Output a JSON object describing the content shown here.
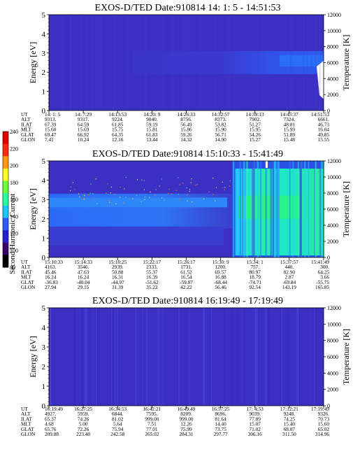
{
  "colorbar": {
    "label": "Second Harmonic Current",
    "ticks": [
      "80",
      "100",
      "120",
      "140",
      "160",
      "180",
      "200",
      "220",
      "240"
    ],
    "colors": [
      "#000000",
      "#3a006e",
      "#2a1fd0",
      "#2f5bff",
      "#19c8ff",
      "#27ffa0",
      "#6bff3a",
      "#ffff20",
      "#ff9a10",
      "#ff2a10",
      "#e00000"
    ]
  },
  "chart_data": [
    {
      "type": "heatmap",
      "title": "EXOS-D/TED   Date:910814  14: 1: 5 - 14:51:53",
      "ylabel": "Energy [eV]",
      "y2label": "Temperature [K]",
      "ylim": [
        0,
        5
      ],
      "y2lim": [
        0,
        12000
      ],
      "yticks": [
        "0",
        "1",
        "2",
        "3",
        "4",
        "5"
      ],
      "y2ticks": [
        "0",
        "2000",
        "4000",
        "6000",
        "8000",
        "10000",
        "12000"
      ],
      "row_labels": [
        "UT",
        "ALT",
        "ILAT",
        "MLT",
        "GLAT",
        "GLON"
      ],
      "columns": [
        [
          "14: 1: 5",
          "9313.",
          "67.39",
          "15.60",
          "69.47",
          "7.41"
        ],
        [
          "14: 7:29",
          "9317.",
          "64.59",
          "15.69",
          "66.92",
          "10.24"
        ],
        [
          "14:13:53",
          "9224.",
          "61.85",
          "15.75",
          "64.35",
          "12.16"
        ],
        [
          "14:20: 9",
          "9040.",
          "59.19",
          "15.81",
          "61.83",
          "13.44"
        ],
        [
          "14:26:33",
          "8756.",
          "56.49",
          "15.86",
          "59.26",
          "14.32"
        ],
        [
          "14:32:57",
          "8373.",
          "53.82",
          "15.90",
          "56.71",
          "14.90"
        ],
        [
          "14:39:13",
          "7902.",
          "51.27",
          "15.95",
          "54.26",
          "15.27"
        ],
        [
          "14:45:37",
          "7324.",
          "48.81",
          "15.99",
          "51.89",
          "15.48"
        ],
        [
          "14:51:53",
          "6661.",
          "46.73",
          "16.04",
          "49.85",
          "15.55"
        ]
      ],
      "bands": [
        {
          "name": "background",
          "color": "#3b2fc4"
        },
        {
          "name": "ion band ~2-3 eV",
          "color": "#2c58f0"
        }
      ]
    },
    {
      "type": "heatmap",
      "title": "EXOS-D/TED   Date:910814  15:10:33 - 15:41:49",
      "ylabel": "Energy [eV]",
      "y2label": "Temperature [K]",
      "ylim": [
        0,
        5
      ],
      "y2lim": [
        0,
        12000
      ],
      "yticks": [
        "0",
        "1",
        "2",
        "3",
        "4",
        "5"
      ],
      "y2ticks": [
        "0",
        "2000",
        "4000",
        "6000",
        "8000",
        "10000",
        "12000"
      ],
      "row_labels": [
        "UT",
        "ALT",
        "ILAT",
        "MLT",
        "GLAT",
        "GLON"
      ],
      "columns": [
        [
          "15:10:33",
          "4163.",
          "45.46",
          "16.24",
          "-36.83",
          "27.94"
        ],
        [
          "15:14:33",
          "3546.",
          "47.63",
          "16.24",
          "-40.04",
          "29.15"
        ],
        [
          "15:18:25",
          "2939.",
          "50.88",
          "16.31",
          "-44.97",
          "31.39"
        ],
        [
          "15:22:17",
          "2333.",
          "55.37",
          "16.39",
          "-51.62",
          "35.22"
        ],
        [
          "15:26:17",
          "1731.",
          "61.52",
          "16.54",
          "-59.87",
          "42.22"
        ],
        [
          "15:30: 9",
          "1200.",
          "69.57",
          "16.88",
          "-68.44",
          "56.46"
        ],
        [
          "15:34: 1",
          "757.",
          "80.97",
          "18.79",
          "-74.71",
          "92.54"
        ],
        [
          "15:37:57",
          "440.",
          "82.90",
          "2.87",
          "-69.84",
          "143.19"
        ],
        [
          "15:41:49",
          "300.",
          "64.25",
          "3.66",
          "-55.75",
          "165.85"
        ]
      ]
    },
    {
      "type": "heatmap",
      "title": "EXOS-D/TED   Date:910814  16:19:49 - 17:19:49",
      "ylabel": "Energy [eV]",
      "y2label": "Temperature [K]",
      "ylim": [
        0,
        5
      ],
      "y2lim": [
        0,
        12000
      ],
      "yticks": [
        "0",
        "1",
        "2",
        "3",
        "4",
        "5"
      ],
      "y2ticks": [
        "0",
        "2000",
        "4000",
        "6000",
        "8000",
        "10000",
        "12000"
      ],
      "row_labels": [
        "UT",
        "ALT",
        "ILAT",
        "MLT",
        "GLAT",
        "GLON"
      ],
      "columns": [
        [
          "16:19:49",
          "4927.",
          "65.37",
          "4.68",
          "65.76",
          "209.88"
        ],
        [
          "16:27:25",
          "5959.",
          "74.26",
          "5.00",
          "72.26",
          "223.40"
        ],
        [
          "16:34:53",
          "6844.",
          "81.02",
          "5.64",
          "75.94",
          "242.58"
        ],
        [
          "16:42:21",
          "7595.",
          "999.00",
          "7.51",
          "77.01",
          "265.02"
        ],
        [
          "16:49:49",
          "8209.",
          "999.00",
          "12.26",
          "75.99",
          "284.31"
        ],
        [
          "16:57:25",
          "8696.",
          "81.64",
          "14.40",
          "73.75",
          "297.77"
        ],
        [
          "17: 4:53",
          "9039.",
          "77.89",
          "15.07",
          "71.02",
          "306.16"
        ],
        [
          "17:12:21",
          "9248.",
          "74.25",
          "15.40",
          "68.07",
          "311.50"
        ],
        [
          "17:19:49",
          "9326.",
          "70.73",
          "15.60",
          "65.02",
          "314.96"
        ]
      ]
    }
  ]
}
